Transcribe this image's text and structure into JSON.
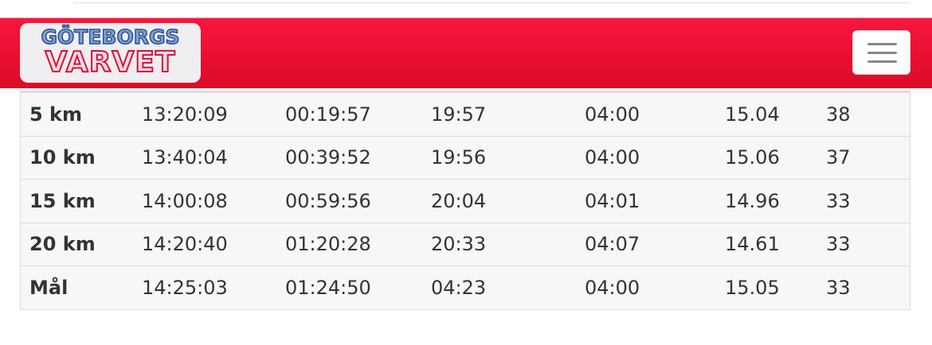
{
  "header": {
    "logo_line1": "GÖTEBORGS",
    "logo_line2": "VARVET",
    "menu_icon": "hamburger-menu-icon",
    "brand_color": "#e8112f"
  },
  "splits": [
    [
      "5 km",
      "13:20:09",
      "00:19:57",
      "19:57",
      "04:00",
      "15.04",
      "38"
    ],
    [
      "10 km",
      "13:40:04",
      "00:39:52",
      "19:56",
      "04:00",
      "15.06",
      "37"
    ],
    [
      "15 km",
      "14:00:08",
      "00:59:56",
      "20:04",
      "04:01",
      "14.96",
      "33"
    ],
    [
      "20 km",
      "14:20:40",
      "01:20:28",
      "20:33",
      "04:07",
      "14.61",
      "33"
    ],
    [
      "Mål",
      "14:25:03",
      "01:24:50",
      "04:23",
      "04:00",
      "15.05",
      "33"
    ]
  ]
}
